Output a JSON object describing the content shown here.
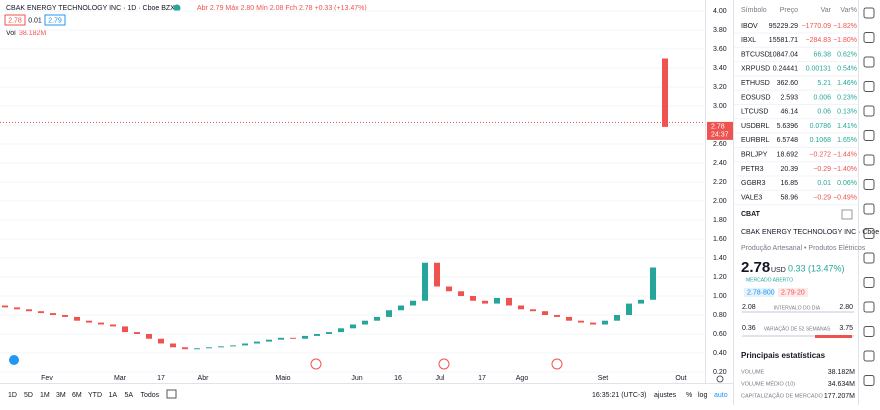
{
  "header": {
    "title": "CBAK ENERGY TECHNOLOGY INC · 1D · Cboe BZX",
    "ohlc": "Abr 2.79  Máx 2.80  Mín 2.08  Fch 2.78  +0.33 (+13.47%)",
    "bid": "2.78",
    "spread": "0.01",
    "ask": "2.79",
    "volume_label": "Vol",
    "volume": "38.182M"
  },
  "chart": {
    "ylim": [
      0.1,
      4.05
    ],
    "yticks": [
      {
        "value": 4,
        "label": "4.00"
      },
      {
        "value": 3.8,
        "label": "3.80"
      },
      {
        "value": 3.6,
        "label": "3.60"
      },
      {
        "value": 3.4,
        "label": "3.40"
      },
      {
        "value": 3.2,
        "label": "3.20"
      },
      {
        "value": 3,
        "label": "3.00"
      },
      {
        "value": 2.8,
        "label": "2.80"
      },
      {
        "value": 2.6,
        "label": "2.60"
      },
      {
        "value": 2.4,
        "label": "2.40"
      },
      {
        "value": 2.2,
        "label": "2.20"
      },
      {
        "value": 2,
        "label": "2.00"
      },
      {
        "value": 1.8,
        "label": "1.80"
      },
      {
        "value": 1.6,
        "label": "1.60"
      },
      {
        "value": 1.4,
        "label": "1.40"
      },
      {
        "value": 1.2,
        "label": "1.20"
      },
      {
        "value": 1,
        "label": "1.00"
      },
      {
        "value": 0.8,
        "label": "0.80"
      },
      {
        "value": 0.6,
        "label": "0.60"
      },
      {
        "value": 0.4,
        "label": "0.40"
      },
      {
        "value": 0.2,
        "label": "0.20"
      }
    ],
    "last_price": {
      "value": 2.78,
      "label": "2.78"
    },
    "countdown": "24:37",
    "x_labels": [
      "Fev",
      "Mar",
      "17",
      "Abr",
      "Maio",
      "Jun",
      "16",
      "Jul",
      "17",
      "Ago",
      "Set",
      "Out"
    ],
    "open": [
      0.9,
      0.88,
      0.86,
      0.84,
      0.82,
      0.8,
      0.78,
      0.74,
      0.72,
      0.7,
      0.68,
      0.62,
      0.6,
      0.55,
      0.5,
      0.46,
      0.44,
      0.45,
      0.46,
      0.47,
      0.48,
      0.5,
      0.52,
      0.54,
      0.56,
      0.55,
      0.58,
      0.6,
      0.62,
      0.66,
      0.7,
      0.74,
      0.78,
      0.85,
      0.9,
      0.95,
      1.35,
      1.1,
      1.05,
      1.0,
      0.95,
      0.92,
      0.98,
      0.9,
      0.86,
      0.84,
      0.8,
      0.78,
      0.74,
      0.72,
      0.7,
      0.74,
      0.8,
      0.92,
      0.96,
      3.5
    ],
    "close": [
      0.88,
      0.86,
      0.84,
      0.82,
      0.8,
      0.78,
      0.74,
      0.72,
      0.7,
      0.68,
      0.62,
      0.6,
      0.55,
      0.5,
      0.46,
      0.44,
      0.45,
      0.46,
      0.47,
      0.48,
      0.5,
      0.52,
      0.54,
      0.56,
      0.55,
      0.58,
      0.6,
      0.62,
      0.66,
      0.7,
      0.74,
      0.78,
      0.85,
      0.9,
      0.95,
      1.35,
      1.1,
      1.05,
      1.0,
      0.95,
      0.92,
      0.98,
      0.9,
      0.86,
      0.84,
      0.8,
      0.78,
      0.74,
      0.72,
      0.7,
      0.74,
      0.8,
      0.92,
      0.96,
      1.3,
      2.78
    ]
  },
  "toolbar": {
    "ranges": [
      "1D",
      "5D",
      "1M",
      "3M",
      "6M",
      "YTD",
      "1A",
      "5A",
      "Todos"
    ],
    "time": "16:35:21 (UTC-3)",
    "settings": "ajustes",
    "percent": "%",
    "log": "log",
    "auto": "auto"
  },
  "watchlist": {
    "columns": [
      "Símbolo",
      "Preço",
      "Var",
      "Var%"
    ],
    "rows": [
      [
        "IBOV",
        "95229.29",
        "−1770.09",
        "−1.82%"
      ],
      [
        "IBXL",
        "15581.71",
        "−284.83",
        "−1.80%"
      ],
      [
        "BTCUSD",
        "10847.04",
        "66.38",
        "0.62%"
      ],
      [
        "XRPUSD",
        "0.24441",
        "0.00131",
        "0.54%"
      ],
      [
        "ETHUSD",
        "362.60",
        "5.21",
        "1.46%"
      ],
      [
        "EOSUSD",
        "2.593",
        "0.006",
        "0.23%"
      ],
      [
        "LTCUSD",
        "46.14",
        "0.06",
        "0.13%"
      ],
      [
        "USDBRL",
        "5.6396",
        "0.0786",
        "1.41%"
      ],
      [
        "EURBRL",
        "6.5748",
        "0.1068",
        "1.65%"
      ],
      [
        "BRLJPY",
        "18.692",
        "−0.272",
        "−1.44%"
      ],
      [
        "PETR3",
        "20.39",
        "−0.29",
        "−1.40%"
      ],
      [
        "GGBR3",
        "16.85",
        "0.01",
        "0.06%"
      ],
      [
        "VALE3",
        "58.96",
        "−0.29",
        "−0.49%"
      ]
    ]
  },
  "details": {
    "symbol": "CBAT",
    "name": "CBAK ENERGY TECHNOLOGY INC · Cboe BZX",
    "sector": "Produção Artesanal • Produtos Elétricos",
    "price": "2.78",
    "currency": "USD",
    "change": "0.33 (13.47%)",
    "status": "MERCADO ABERTO",
    "bid": "2.78·800",
    "ask": "2.79·20",
    "day_low": "2.08",
    "day_label": "INTERVALO DO DIA",
    "day_high": "2.80",
    "year_low": "0.36",
    "year_label": "VARIAÇÃO DE 52 SEMANAS",
    "year_high": "3.75",
    "stats_title": "Principais estatísticas",
    "stats": [
      [
        "VOLUME",
        "38.182M"
      ],
      [
        "VOLUME MÉDIO (10)",
        "34.634M"
      ],
      [
        "CAPITALIZAÇÃO DE MERCADO",
        "177.207M"
      ]
    ]
  }
}
